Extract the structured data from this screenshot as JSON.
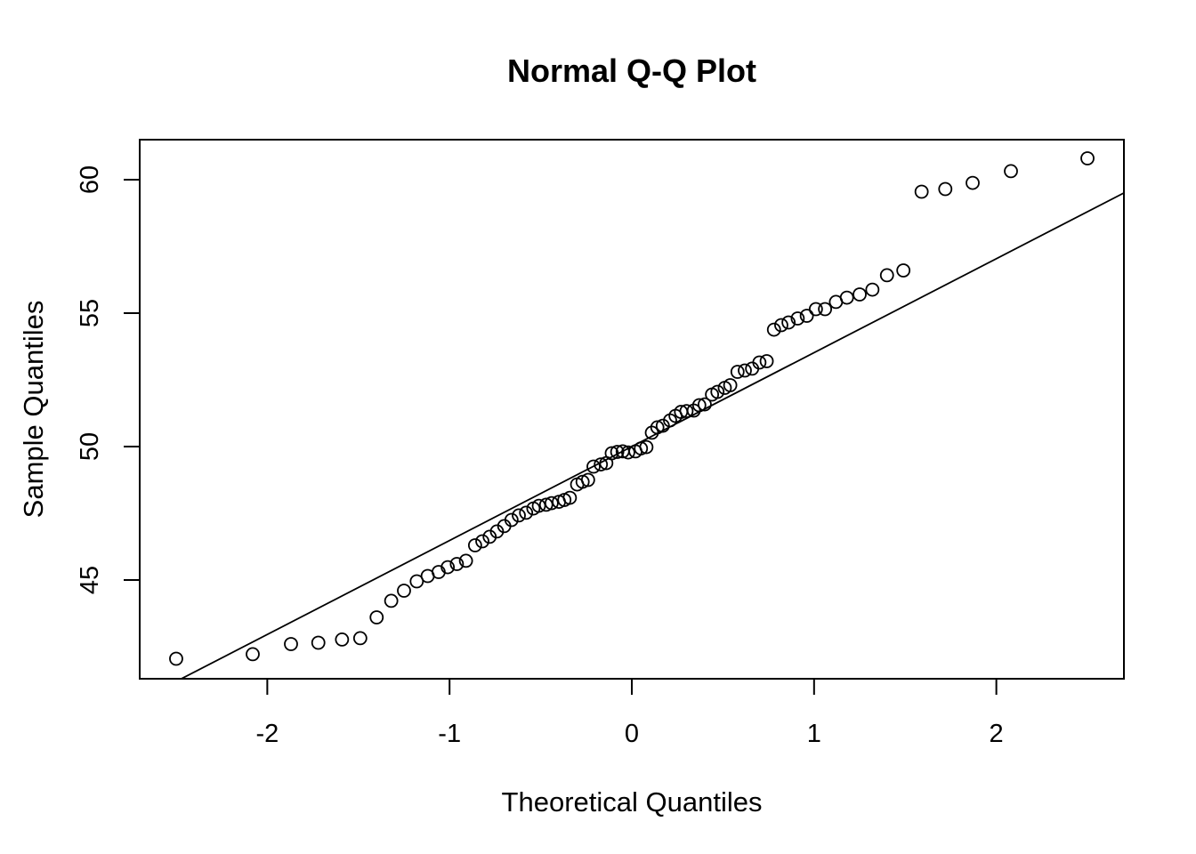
{
  "chart_data": {
    "type": "scatter",
    "title": "Normal Q-Q Plot",
    "xlabel": "Theoretical Quantiles",
    "ylabel": "Sample Quantiles",
    "xlim": [
      -2.7,
      2.7
    ],
    "ylim": [
      41.3,
      61.5
    ],
    "x_ticks": [
      -2,
      -1,
      0,
      1,
      2
    ],
    "x_tick_labels": [
      "-2",
      "-1",
      "0",
      "1",
      "2"
    ],
    "y_ticks": [
      45,
      50,
      55,
      60
    ],
    "y_tick_labels": [
      "45",
      "50",
      "55",
      "60"
    ],
    "grid": false,
    "legend": "none",
    "reference_line": {
      "slope": 3.52,
      "intercept": 50.0
    },
    "points": [
      [
        -2.5,
        42.05
      ],
      [
        -2.08,
        42.22
      ],
      [
        -1.87,
        42.6
      ],
      [
        -1.72,
        42.65
      ],
      [
        -1.59,
        42.77
      ],
      [
        -1.49,
        42.82
      ],
      [
        -1.4,
        43.6
      ],
      [
        -1.32,
        44.22
      ],
      [
        -1.25,
        44.6
      ],
      [
        -1.18,
        44.95
      ],
      [
        -1.12,
        45.15
      ],
      [
        -1.06,
        45.3
      ],
      [
        -1.01,
        45.48
      ],
      [
        -0.96,
        45.6
      ],
      [
        -0.91,
        45.72
      ],
      [
        -0.86,
        46.3
      ],
      [
        -0.82,
        46.45
      ],
      [
        -0.78,
        46.62
      ],
      [
        -0.74,
        46.82
      ],
      [
        -0.7,
        47.02
      ],
      [
        -0.66,
        47.25
      ],
      [
        -0.62,
        47.42
      ],
      [
        -0.58,
        47.52
      ],
      [
        -0.54,
        47.68
      ],
      [
        -0.51,
        47.78
      ],
      [
        -0.47,
        47.82
      ],
      [
        -0.44,
        47.88
      ],
      [
        -0.4,
        47.93
      ],
      [
        -0.37,
        48.0
      ],
      [
        -0.34,
        48.08
      ],
      [
        -0.3,
        48.58
      ],
      [
        -0.27,
        48.68
      ],
      [
        -0.24,
        48.75
      ],
      [
        -0.21,
        49.25
      ],
      [
        -0.17,
        49.33
      ],
      [
        -0.14,
        49.38
      ],
      [
        -0.11,
        49.75
      ],
      [
        -0.08,
        49.8
      ],
      [
        -0.05,
        49.82
      ],
      [
        -0.02,
        49.78
      ],
      [
        0.02,
        49.82
      ],
      [
        0.05,
        49.93
      ],
      [
        0.08,
        49.98
      ],
      [
        0.11,
        50.52
      ],
      [
        0.14,
        50.72
      ],
      [
        0.17,
        50.78
      ],
      [
        0.21,
        50.98
      ],
      [
        0.24,
        51.15
      ],
      [
        0.27,
        51.3
      ],
      [
        0.3,
        51.33
      ],
      [
        0.34,
        51.35
      ],
      [
        0.37,
        51.55
      ],
      [
        0.4,
        51.58
      ],
      [
        0.44,
        51.95
      ],
      [
        0.47,
        52.05
      ],
      [
        0.51,
        52.2
      ],
      [
        0.54,
        52.3
      ],
      [
        0.58,
        52.8
      ],
      [
        0.62,
        52.85
      ],
      [
        0.66,
        52.92
      ],
      [
        0.7,
        53.15
      ],
      [
        0.74,
        53.2
      ],
      [
        0.78,
        54.38
      ],
      [
        0.82,
        54.55
      ],
      [
        0.86,
        54.65
      ],
      [
        0.91,
        54.8
      ],
      [
        0.96,
        54.9
      ],
      [
        1.01,
        55.15
      ],
      [
        1.06,
        55.15
      ],
      [
        1.12,
        55.42
      ],
      [
        1.18,
        55.58
      ],
      [
        1.25,
        55.7
      ],
      [
        1.32,
        55.88
      ],
      [
        1.4,
        56.42
      ],
      [
        1.49,
        56.6
      ],
      [
        1.59,
        59.55
      ],
      [
        1.72,
        59.65
      ],
      [
        1.87,
        59.88
      ],
      [
        2.08,
        60.32
      ],
      [
        2.5,
        60.8
      ]
    ]
  }
}
